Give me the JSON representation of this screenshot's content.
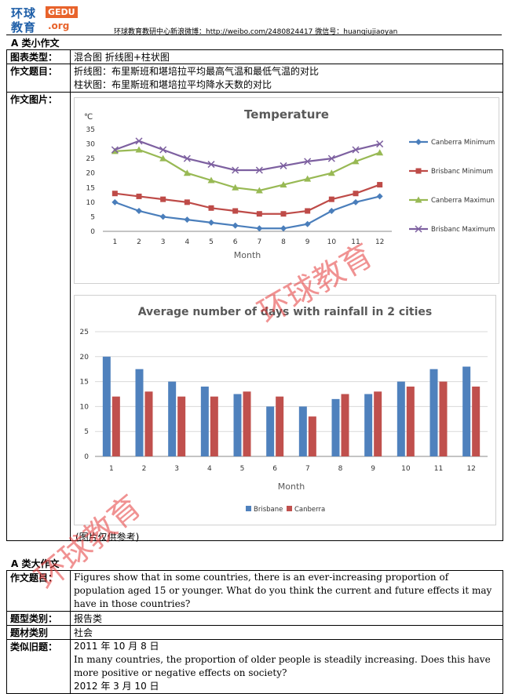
{
  "header": {
    "logo_line1": "环球",
    "logo_line2": "教育",
    "logo_badge": "GEDU",
    "logo_org": ".org",
    "contact": "环球教育教研中心新浪微博：http://weibo.com/2480824417  微信号：huanqiujiaoyan"
  },
  "small_essay": {
    "section_title": "A 类小作文",
    "rows": [
      {
        "label": "图表类型：",
        "value": "混合图  折线图+柱状图"
      },
      {
        "label": "作文题目：",
        "value": "折线图：布里斯班和堪培拉平均最高气温和最低气温的对比",
        "value2": "柱状图：布里斯班和堪培拉平均降水天数的对比"
      },
      {
        "label": "作文图片："
      }
    ],
    "image_note": "(图片仅供参考)"
  },
  "large_essay": {
    "section_title": "A 类大作文",
    "rows": [
      {
        "label": "作文题目：",
        "value": "Figures show that in some countries, there is an ever-increasing proportion of population aged 15 or younger. What do you think the current and future effects it may have in those countries?"
      },
      {
        "label": "题型类别：",
        "value": "报告类"
      },
      {
        "label": "题材类别",
        "value": "社会"
      },
      {
        "label": "类似旧题：",
        "value": "2011 年 10 月 8 日",
        "value2": "In many countries, the proportion of older people is steadily increasing. Does this have more positive or negative effects on society?",
        "value3": "2012 年 3 月 10 日"
      }
    ]
  },
  "watermark": {
    "text": "环球教育"
  },
  "chart_data": [
    {
      "type": "line",
      "title": "Temperature",
      "ylabel": "℃",
      "xlabel": "Month",
      "ylim": [
        0,
        35
      ],
      "yticks": [
        0,
        5,
        10,
        15,
        20,
        25,
        30,
        35
      ],
      "x": [
        1,
        2,
        3,
        4,
        5,
        6,
        7,
        8,
        9,
        10,
        11,
        12
      ],
      "grid": false,
      "legend": "right",
      "series": [
        {
          "name": "Canberra Minimum",
          "color": "#4a7ebb",
          "marker": "diamond",
          "values": [
            10,
            7,
            5,
            4,
            3,
            2,
            1,
            1,
            2.5,
            7,
            10,
            12
          ]
        },
        {
          "name": "Brisbanc Minimum",
          "color": "#be4b48",
          "marker": "square",
          "values": [
            13,
            12,
            11,
            10,
            8,
            7,
            6,
            6,
            7,
            11,
            13,
            16
          ]
        },
        {
          "name": "Canberra Maximun",
          "color": "#98b954",
          "marker": "triangle",
          "values": [
            27.5,
            28,
            25,
            20,
            17.5,
            15,
            14,
            16,
            18,
            20,
            24,
            27
          ]
        },
        {
          "name": "Brisbanc Maximum",
          "color": "#7d60a0",
          "marker": "x",
          "values": [
            28,
            31,
            28,
            25,
            23,
            21,
            21,
            22.5,
            24,
            25,
            28,
            30
          ]
        }
      ]
    },
    {
      "type": "bar",
      "title": "Average number of days with rainfall in 2 cities",
      "xlabel": "Month",
      "ylim": [
        0,
        25
      ],
      "yticks": [
        0,
        5,
        10,
        15,
        20,
        25
      ],
      "categories": [
        1,
        2,
        3,
        4,
        5,
        6,
        7,
        8,
        9,
        10,
        11,
        12
      ],
      "grid": true,
      "legend": "bottom",
      "series": [
        {
          "name": "Brisbane",
          "color": "#4f81bd",
          "values": [
            20,
            17.5,
            15,
            14,
            12.5,
            10,
            10,
            11.5,
            12.5,
            15,
            17.5,
            18
          ]
        },
        {
          "name": "Canberra",
          "color": "#c0504d",
          "values": [
            12,
            13,
            12,
            12,
            13,
            12,
            8,
            12.5,
            13,
            14,
            15,
            14
          ]
        }
      ]
    }
  ]
}
